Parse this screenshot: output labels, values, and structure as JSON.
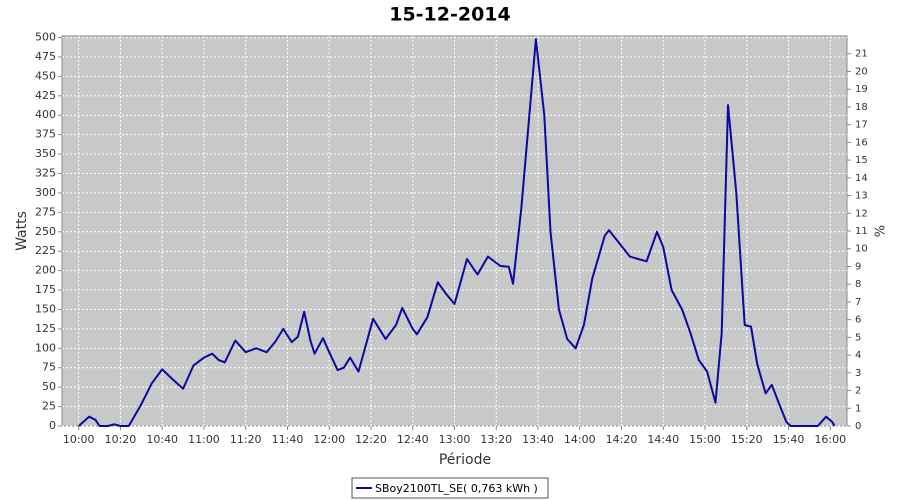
{
  "chart_data": {
    "type": "line",
    "title": "15-12-2014",
    "xlabel": "Période",
    "ylabel": "Watts",
    "y2label": "%",
    "x": [
      600,
      605,
      608,
      610,
      614,
      617,
      620,
      624,
      630,
      635,
      640,
      645,
      650,
      655,
      660,
      664,
      667,
      670,
      675,
      680,
      685,
      690,
      694,
      698,
      702,
      705,
      708,
      711,
      713,
      717,
      720,
      724,
      727,
      730,
      734,
      741,
      747,
      752,
      755,
      760,
      762,
      767,
      772,
      776,
      780,
      786,
      791,
      796,
      802,
      806,
      808,
      812,
      819,
      823,
      826,
      830,
      834,
      838,
      842,
      846,
      852,
      854,
      859,
      864,
      868,
      872,
      877,
      880,
      884,
      889,
      893,
      897,
      901,
      905,
      908,
      911,
      915,
      919,
      922,
      925,
      929,
      932,
      936,
      939,
      941,
      954,
      958,
      961,
      962
    ],
    "series": [
      {
        "name": "SBoy2100TL_SE( 0,763 kWh )",
        "color": "#0a0aa0",
        "values": [
          0,
          12,
          8,
          0,
          0,
          2,
          0,
          0,
          28,
          55,
          73,
          60,
          48,
          78,
          88,
          93,
          85,
          82,
          110,
          95,
          100,
          95,
          108,
          125,
          108,
          115,
          147,
          110,
          93,
          113,
          95,
          72,
          75,
          88,
          70,
          138,
          112,
          130,
          152,
          125,
          118,
          140,
          185,
          170,
          157,
          215,
          195,
          218,
          206,
          205,
          183,
          280,
          498,
          400,
          250,
          150,
          112,
          100,
          130,
          190,
          245,
          252,
          235,
          218,
          215,
          212,
          250,
          230,
          175,
          150,
          120,
          85,
          70,
          30,
          120,
          413,
          300,
          130,
          128,
          80,
          42,
          53,
          25,
          5,
          0,
          0,
          12,
          5,
          0
        ]
      }
    ],
    "xlim": [
      592,
      968
    ],
    "xticks": [
      {
        "value": 600,
        "label": "10:00"
      },
      {
        "value": 620,
        "label": "10:20"
      },
      {
        "value": 640,
        "label": "10:40"
      },
      {
        "value": 660,
        "label": "11:00"
      },
      {
        "value": 680,
        "label": "11:20"
      },
      {
        "value": 700,
        "label": "11:40"
      },
      {
        "value": 720,
        "label": "12:00"
      },
      {
        "value": 740,
        "label": "12:20"
      },
      {
        "value": 760,
        "label": "12:40"
      },
      {
        "value": 780,
        "label": "13:00"
      },
      {
        "value": 800,
        "label": "13:20"
      },
      {
        "value": 820,
        "label": "13:40"
      },
      {
        "value": 840,
        "label": "14:00"
      },
      {
        "value": 860,
        "label": "14:20"
      },
      {
        "value": 880,
        "label": "14:40"
      },
      {
        "value": 900,
        "label": "15:00"
      },
      {
        "value": 920,
        "label": "15:20"
      },
      {
        "value": 940,
        "label": "15:40"
      },
      {
        "value": 960,
        "label": "16:00"
      }
    ],
    "ylim": [
      0,
      502
    ],
    "yticks": [
      0,
      25,
      50,
      75,
      100,
      125,
      150,
      175,
      200,
      225,
      250,
      275,
      300,
      325,
      350,
      375,
      400,
      425,
      450,
      475,
      500
    ],
    "y2lim": [
      0,
      22
    ],
    "y2ticks": [
      0,
      1,
      2,
      3,
      4,
      5,
      6,
      7,
      8,
      9,
      10,
      11,
      12,
      13,
      14,
      15,
      16,
      17,
      18,
      19,
      20,
      21
    ],
    "grid": true
  }
}
